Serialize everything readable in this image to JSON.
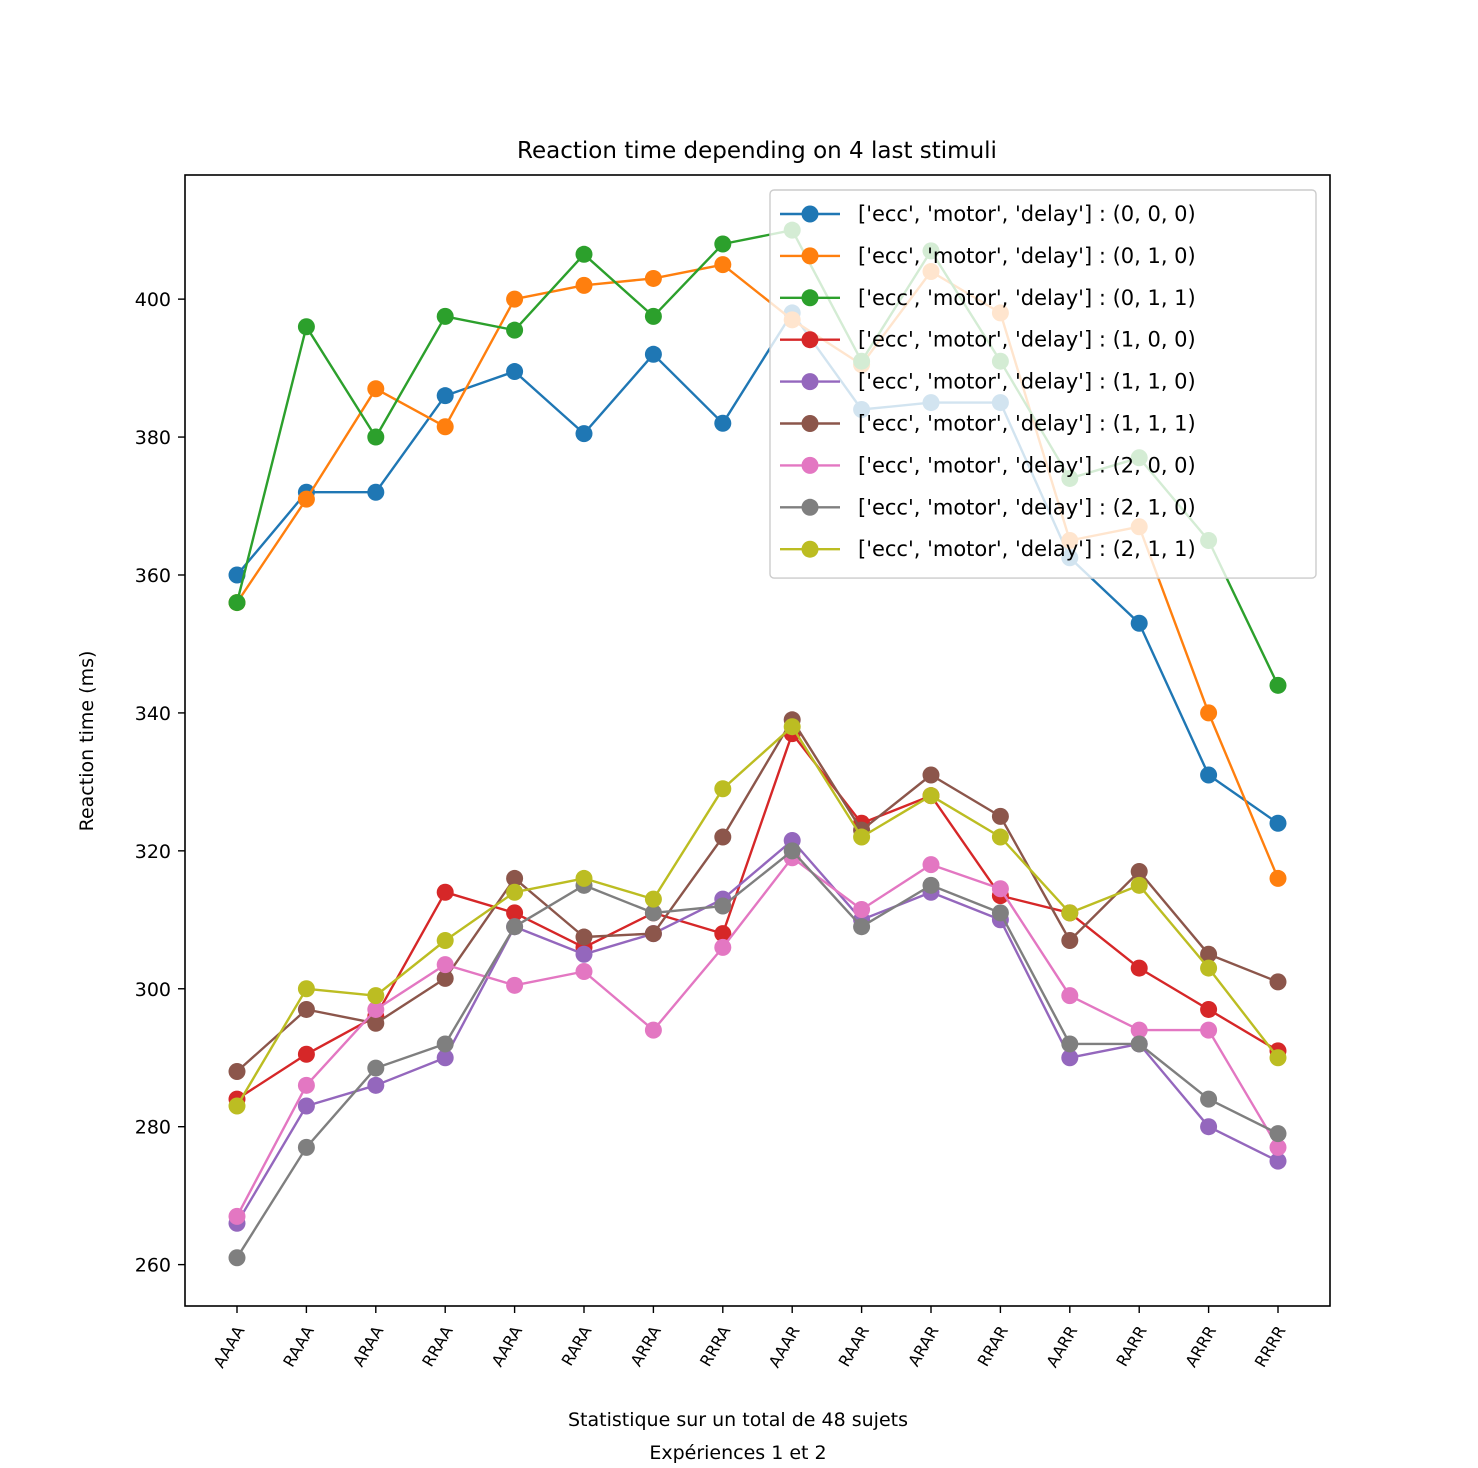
{
  "chart_data": {
    "type": "line",
    "title": "Reaction time depending on 4 last stimuli",
    "xlabel_lines": [
      "Statistique sur un total de 48 sujets",
      "Expériences 1 et 2"
    ],
    "ylabel": "Reaction time (ms)",
    "categories": [
      "AAAA",
      "RAAA",
      "ARAA",
      "RRAA",
      "AARA",
      "RARA",
      "ARRA",
      "RRRA",
      "AAAR",
      "RAAR",
      "ARAR",
      "RRAR",
      "AARR",
      "RARR",
      "ARRR",
      "RRRR"
    ],
    "ylim": [
      254,
      418
    ],
    "yticks": [
      260,
      280,
      300,
      320,
      340,
      360,
      380,
      400
    ],
    "grid": false,
    "legend_position": "top-right",
    "series": [
      {
        "name": "['ecc', 'motor', 'delay'] : (0, 0, 0)",
        "color": "#1f77b4",
        "values": [
          360,
          372,
          372,
          386,
          389.5,
          380.5,
          392,
          382,
          398,
          384,
          385,
          385,
          362.5,
          353,
          331,
          324
        ]
      },
      {
        "name": "['ecc', 'motor', 'delay'] : (0, 1, 0)",
        "color": "#ff7f0e",
        "values": [
          356,
          371,
          387,
          381.5,
          400,
          402,
          403,
          405,
          397,
          390.5,
          404,
          398,
          365,
          367,
          340,
          316
        ]
      },
      {
        "name": "['ecc', 'motor', 'delay'] : (0, 1, 1)",
        "color": "#2ca02c",
        "values": [
          356,
          396,
          380,
          397.5,
          395.5,
          406.5,
          397.5,
          408,
          410,
          391,
          407,
          391,
          374,
          377,
          365,
          344
        ]
      },
      {
        "name": "['ecc', 'motor', 'delay'] : (1, 0, 0)",
        "color": "#d62728",
        "values": [
          284,
          290.5,
          296,
          314,
          311,
          306,
          311,
          308,
          337,
          324,
          328,
          313.5,
          311,
          303,
          297,
          291
        ]
      },
      {
        "name": "['ecc', 'motor', 'delay'] : (1, 1, 0)",
        "color": "#9467bd",
        "values": [
          266,
          283,
          286,
          290,
          309,
          305,
          308,
          313,
          321.5,
          310,
          314,
          310,
          290,
          292,
          280,
          275
        ]
      },
      {
        "name": "['ecc', 'motor', 'delay'] : (1, 1, 1)",
        "color": "#8c564b",
        "values": [
          288,
          297,
          295,
          301.5,
          316,
          307.5,
          308,
          322,
          339,
          323,
          331,
          325,
          307,
          317,
          305,
          301
        ]
      },
      {
        "name": "['ecc', 'motor', 'delay'] : (2, 0, 0)",
        "color": "#e377c2",
        "values": [
          267,
          286,
          297,
          303.5,
          300.5,
          302.5,
          294,
          306,
          319,
          311.5,
          318,
          314.5,
          299,
          294,
          294,
          277
        ]
      },
      {
        "name": "['ecc', 'motor', 'delay'] : (2, 1, 0)",
        "color": "#7f7f7f",
        "values": [
          261,
          277,
          288.5,
          292,
          309,
          315,
          311,
          312,
          320,
          309,
          315,
          311,
          292,
          292,
          284,
          279
        ]
      },
      {
        "name": "['ecc', 'motor', 'delay'] : (2, 1, 1)",
        "color": "#bcbd22",
        "values": [
          283,
          300,
          299,
          307,
          314,
          316,
          313,
          329,
          338,
          322,
          328,
          322,
          311,
          315,
          303,
          290
        ]
      }
    ]
  }
}
